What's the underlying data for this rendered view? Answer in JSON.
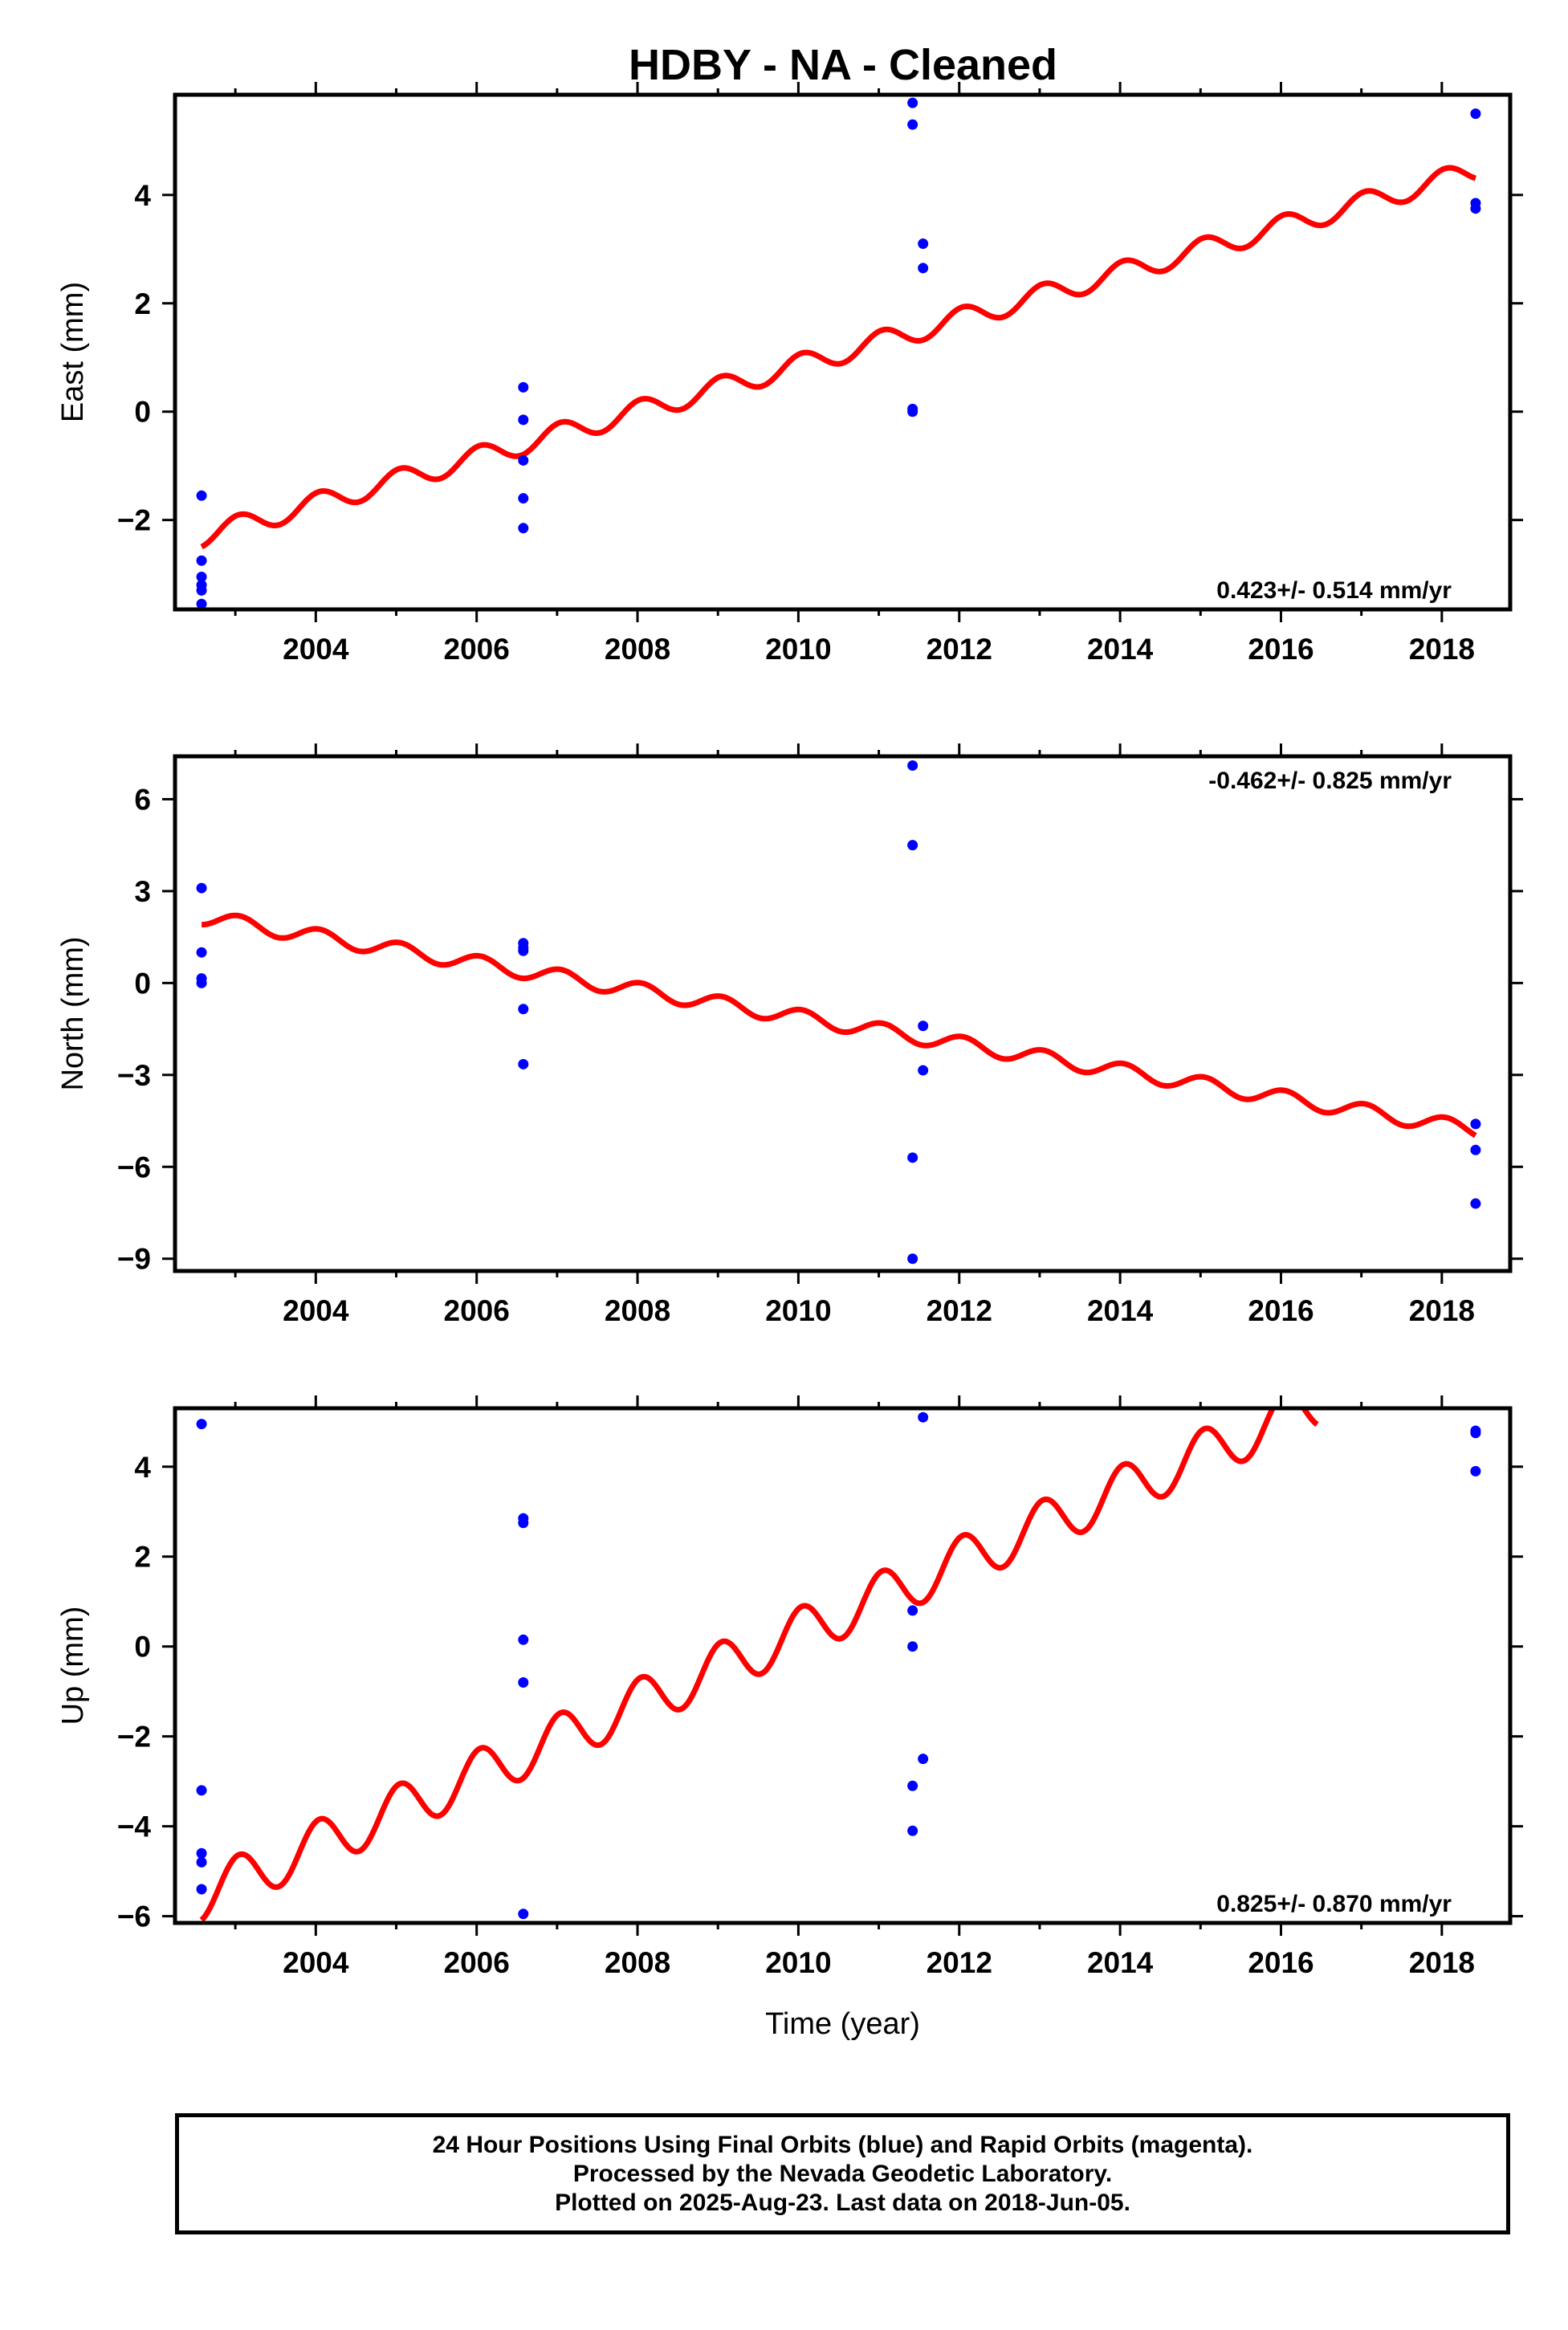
{
  "title": "HDBY  - NA - Cleaned",
  "colors": {
    "final_points": "#0000ff",
    "model_line": "#ff0000",
    "frame": "#000000"
  },
  "chart_data": [
    {
      "type": "scatter",
      "ylabel": "East (mm)",
      "xlabel": "",
      "xlim": [
        2002.25,
        2018.85
      ],
      "ylim": [
        -3.65,
        5.85
      ],
      "xticks": [
        2004,
        2006,
        2008,
        2010,
        2012,
        2014,
        2016,
        2018
      ],
      "yticks": [
        -2,
        0,
        2,
        4
      ],
      "rate_label": "0.423+/- 0.514 mm/yr",
      "rate_position": "bottom-right",
      "points": {
        "x": [
          2002.58,
          2002.58,
          2002.58,
          2002.58,
          2002.58,
          2002.58,
          2006.58,
          2006.58,
          2006.58,
          2006.58,
          2006.58,
          2011.42,
          2011.42,
          2011.42,
          2011.42,
          2011.55,
          2011.55,
          2018.42,
          2018.42,
          2018.42
        ],
        "y": [
          -1.55,
          -2.75,
          -3.05,
          -3.2,
          -3.3,
          -3.55,
          0.45,
          -0.15,
          -0.9,
          -1.6,
          -2.15,
          5.7,
          5.3,
          0.05,
          0.0,
          3.1,
          2.65,
          5.5,
          3.85,
          3.75
        ]
      },
      "model": {
        "x_range": [
          2002.58,
          2018.42
        ],
        "y_start": -2.3,
        "y_end": 4.45,
        "annual_amplitude": 0.2,
        "annual_phase": 1.3
      }
    },
    {
      "type": "scatter",
      "ylabel": "North (mm)",
      "xlabel": "",
      "xlim": [
        2002.25,
        2018.85
      ],
      "ylim": [
        -9.4,
        7.4
      ],
      "xticks": [
        2004,
        2006,
        2008,
        2010,
        2012,
        2014,
        2016,
        2018
      ],
      "yticks": [
        -9,
        -6,
        -3,
        0,
        3,
        6
      ],
      "rate_label": "-0.462+/- 0.825 mm/yr",
      "rate_position": "top-right",
      "points": {
        "x": [
          2002.58,
          2002.58,
          2002.58,
          2002.58,
          2006.58,
          2006.58,
          2006.58,
          2006.58,
          2006.58,
          2011.42,
          2011.42,
          2011.42,
          2011.42,
          2011.55,
          2011.55,
          2018.42,
          2018.42,
          2018.42
        ],
        "y": [
          3.1,
          1.0,
          0.15,
          0.0,
          1.3,
          1.15,
          1.05,
          -0.85,
          -2.65,
          7.1,
          4.5,
          -5.7,
          -9.0,
          -1.4,
          -2.85,
          -4.6,
          -5.45,
          -7.2
        ]
      },
      "model": {
        "x_range": [
          2002.58,
          2018.42
        ],
        "y_start": 2.15,
        "y_end": -4.8,
        "annual_amplitude": 0.25,
        "annual_phase": 1.3
      }
    },
    {
      "type": "scatter",
      "ylabel": "Up (mm)",
      "xlabel": "Time (year)",
      "xlim": [
        2002.25,
        2018.85
      ],
      "ylim": [
        -6.15,
        5.3
      ],
      "xticks": [
        2004,
        2006,
        2008,
        2010,
        2012,
        2014,
        2016,
        2018
      ],
      "yticks": [
        -6,
        -4,
        -2,
        0,
        2,
        4
      ],
      "rate_label": "0.825+/- 0.870 mm/yr",
      "rate_position": "bottom-right",
      "points": {
        "x": [
          2002.58,
          2002.58,
          2002.58,
          2002.58,
          2002.58,
          2006.58,
          2006.58,
          2006.58,
          2006.58,
          2006.58,
          2011.42,
          2011.42,
          2011.42,
          2011.42,
          2011.55,
          2011.55,
          2018.42,
          2018.42,
          2018.42
        ],
        "y": [
          4.95,
          -3.2,
          -4.6,
          -4.8,
          -5.4,
          2.85,
          2.75,
          0.15,
          -0.8,
          -5.95,
          0.8,
          0.0,
          -3.1,
          -4.1,
          5.1,
          -2.5,
          4.8,
          4.75,
          3.9
        ]
      },
      "model": {
        "x_range": [
          2002.58,
          2016.45
        ],
        "y_start": -5.55,
        "y_end": 5.4,
        "annual_amplitude": 0.55,
        "annual_phase": 1.3
      }
    }
  ],
  "footer": {
    "line1": "24 Hour Positions Using Final Orbits (blue) and Rapid Orbits (magenta).",
    "line2": "Processed by the Nevada Geodetic Laboratory.",
    "line3": "Plotted on 2025-Aug-23. Last data on 2018-Jun-05."
  }
}
